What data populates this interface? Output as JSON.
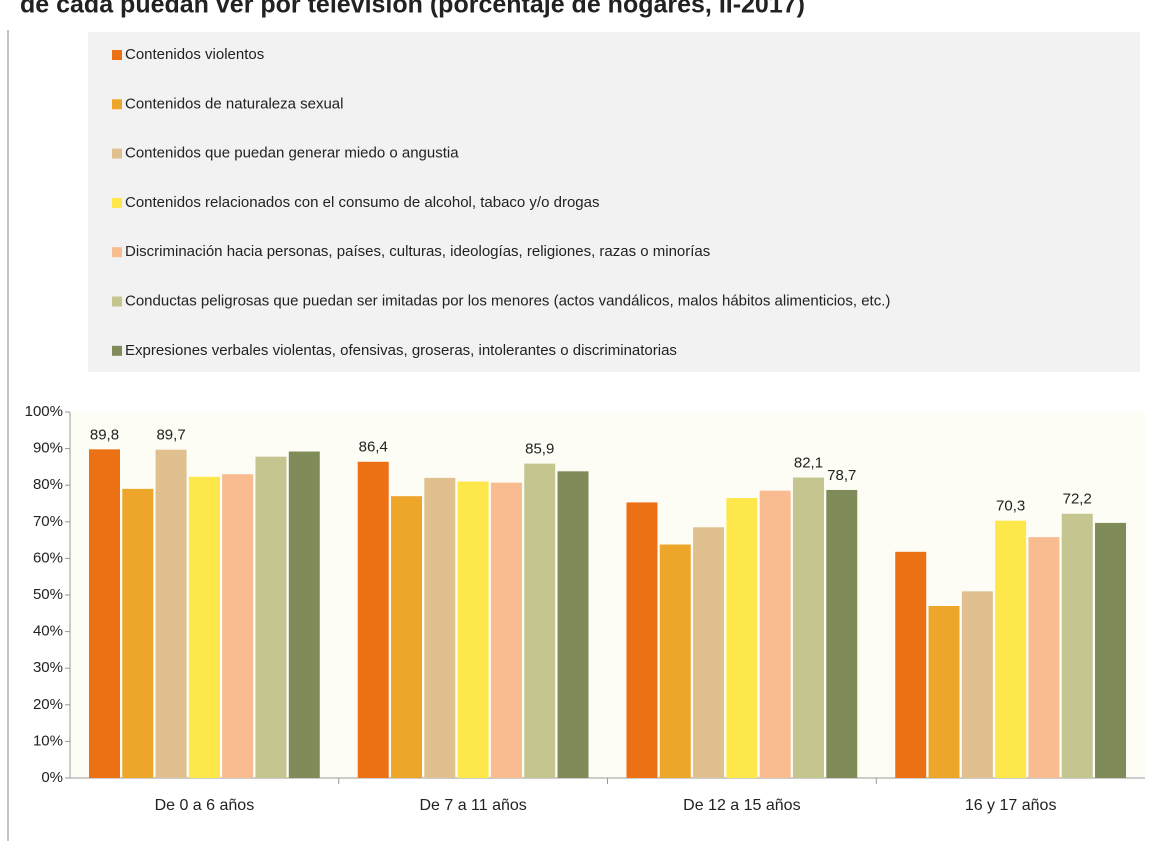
{
  "chart_data": {
    "type": "bar",
    "title": "de cada puedan ver por televisión (porcentaje de hogares, II-2017)",
    "categories": [
      "De 0 a 6 años",
      "De 7 a 11 años",
      "De 12 a 15 años",
      "16 y 17 años"
    ],
    "series": [
      {
        "name": "Contenidos violentos",
        "color": "#ec7014",
        "values": [
          89.8,
          86.4,
          75.3,
          61.8
        ],
        "value_labels": [
          "89,8",
          "86,4",
          null,
          null
        ]
      },
      {
        "name": "Contenidos de naturaleza sexual",
        "color": "#eea62a",
        "values": [
          79,
          77,
          63.8,
          47
        ],
        "value_labels": [
          null,
          null,
          null,
          null
        ]
      },
      {
        "name": "Contenidos que puedan generar miedo o angustia",
        "color": "#dfc08e",
        "values": [
          89.7,
          82,
          68.5,
          51
        ],
        "value_labels": [
          "89,7",
          null,
          null,
          null
        ]
      },
      {
        "name": "Contenidos relacionados con el consumo de alcohol, tabaco y/o drogas",
        "color": "#fde74a",
        "values": [
          82.3,
          81,
          76.5,
          70.3
        ],
        "value_labels": [
          null,
          null,
          null,
          "70,3"
        ]
      },
      {
        "name": "Discriminación hacia personas, países, culturas, ideologías, religiones, razas o minorías",
        "color": "#f9bc91",
        "values": [
          83,
          80.7,
          78.5,
          65.8
        ],
        "value_labels": [
          null,
          null,
          null,
          null
        ]
      },
      {
        "name": "Conductas peligrosas que puedan ser imitadas por los menores (actos vandálicos, malos hábitos alimenticios, etc.)",
        "color": "#c5c590",
        "values": [
          87.8,
          85.9,
          82.1,
          72.2
        ],
        "value_labels": [
          null,
          "85,9",
          "82,1",
          "72,2"
        ]
      },
      {
        "name": "Expresiones verbales violentas, ofensivas, groseras, intolerantes o discriminatorias",
        "color": "#7f8c5a",
        "values": [
          89.2,
          83.8,
          78.7,
          69.7
        ],
        "value_labels": [
          null,
          null,
          "78,7",
          null
        ]
      }
    ],
    "ylim": [
      0,
      100
    ],
    "yticks": [
      {
        "value": 0,
        "label": "0%"
      },
      {
        "value": 10,
        "label": "10%"
      },
      {
        "value": 20,
        "label": "20%"
      },
      {
        "value": 30,
        "label": "30%"
      },
      {
        "value": 40,
        "label": "40%"
      },
      {
        "value": 50,
        "label": "50%"
      },
      {
        "value": 60,
        "label": "60%"
      },
      {
        "value": 70,
        "label": "70%"
      },
      {
        "value": 80,
        "label": "80%"
      },
      {
        "value": 90,
        "label": "90%"
      },
      {
        "value": 100,
        "label": "100%"
      }
    ],
    "legend": "top"
  }
}
